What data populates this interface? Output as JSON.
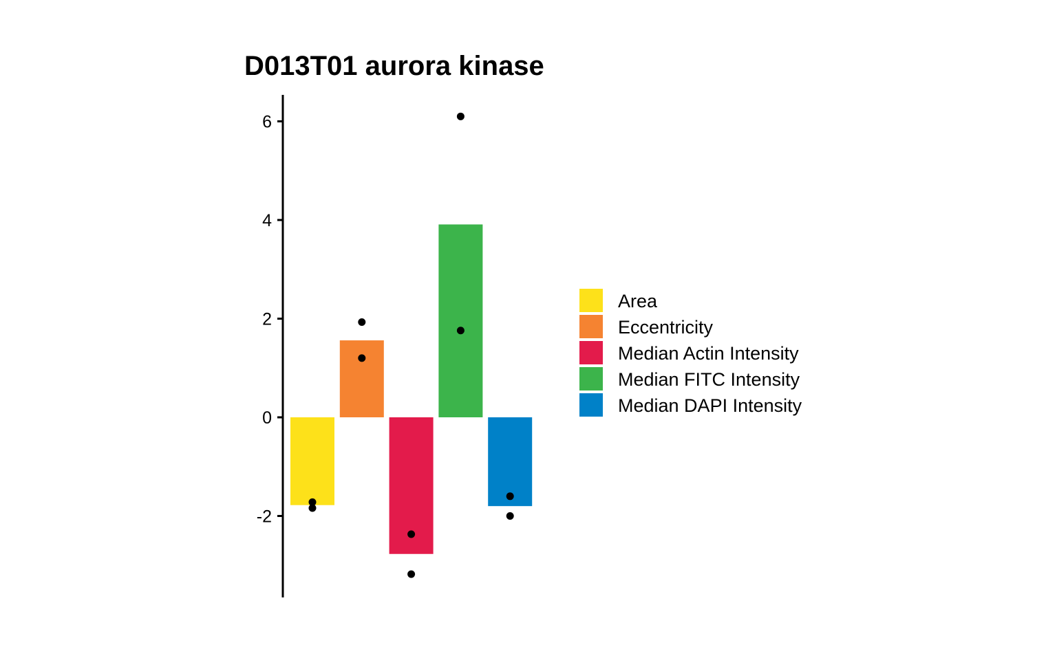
{
  "chart_data": {
    "type": "bar",
    "title": "D013T01 aurora kinase",
    "xlabel": "",
    "ylabel": "",
    "ylim": [
      -3.6,
      6.5
    ],
    "yticks": [
      -2,
      0,
      2,
      4,
      6
    ],
    "ytick_labels": [
      "-2",
      "0",
      "2",
      "4",
      "6"
    ],
    "grid": false,
    "legend_position": "right",
    "categories": [
      "Area",
      "Eccentricity",
      "Median Actin Intensity",
      "Median FITC Intensity",
      "Median DAPI Intensity"
    ],
    "values": [
      -1.78,
      1.56,
      -2.77,
      3.91,
      -1.8
    ],
    "colors": [
      "#FDE11A",
      "#F58331",
      "#E31B4B",
      "#3CB44B",
      "#0081C8"
    ],
    "points": [
      [
        -1.72,
        -1.84
      ],
      [
        1.93,
        1.2
      ],
      [
        -2.37,
        -3.18
      ],
      [
        6.1,
        1.76
      ],
      [
        -1.6,
        -2.0
      ]
    ]
  }
}
